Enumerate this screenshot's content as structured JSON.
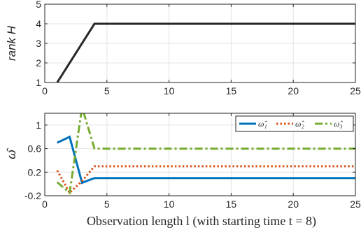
{
  "chart_data": [
    {
      "type": "line",
      "title": "",
      "xlabel": "",
      "ylabel": "rank H",
      "xlim": [
        0,
        25
      ],
      "ylim": [
        1,
        5
      ],
      "xticks": [
        "0",
        "5",
        "10",
        "15",
        "20",
        "25"
      ],
      "yticks": [
        "1",
        "2",
        "3",
        "4",
        "5"
      ],
      "grid": true,
      "series": [
        {
          "x": [
            1,
            4,
            25
          ],
          "y": [
            1,
            4,
            4
          ],
          "color": "#262626",
          "style": "solid"
        }
      ]
    },
    {
      "type": "line",
      "title": "",
      "xlabel": "Observation length l (with starting time t = 8)",
      "ylabel": "ω̂",
      "xlim": [
        0,
        25
      ],
      "ylim": [
        -0.2,
        1.2
      ],
      "xticks": [
        "0",
        "5",
        "10",
        "15",
        "20",
        "25"
      ],
      "yticks": [
        "-0.2",
        "0.2",
        "0.6",
        "1"
      ],
      "grid": true,
      "legend_position": "top-right",
      "series": [
        {
          "name": "ω̂₁",
          "x": [
            1,
            2,
            3,
            4,
            25
          ],
          "y": [
            0.7,
            0.8,
            0.02,
            0.1,
            0.1
          ],
          "color": "#0072BD",
          "style": "solid"
        },
        {
          "name": "ω̂₂",
          "x": [
            1,
            2,
            3,
            4,
            25
          ],
          "y": [
            0.23,
            -0.15,
            0.05,
            0.3,
            0.3
          ],
          "color": "#D95319",
          "style": "dotted"
        },
        {
          "name": "ω̂₃",
          "x": [
            1,
            2,
            3,
            4,
            25
          ],
          "y": [
            0.03,
            -0.15,
            1.3,
            0.6,
            0.6
          ],
          "color": "#77AC30",
          "style": "dashdot"
        }
      ]
    }
  ]
}
